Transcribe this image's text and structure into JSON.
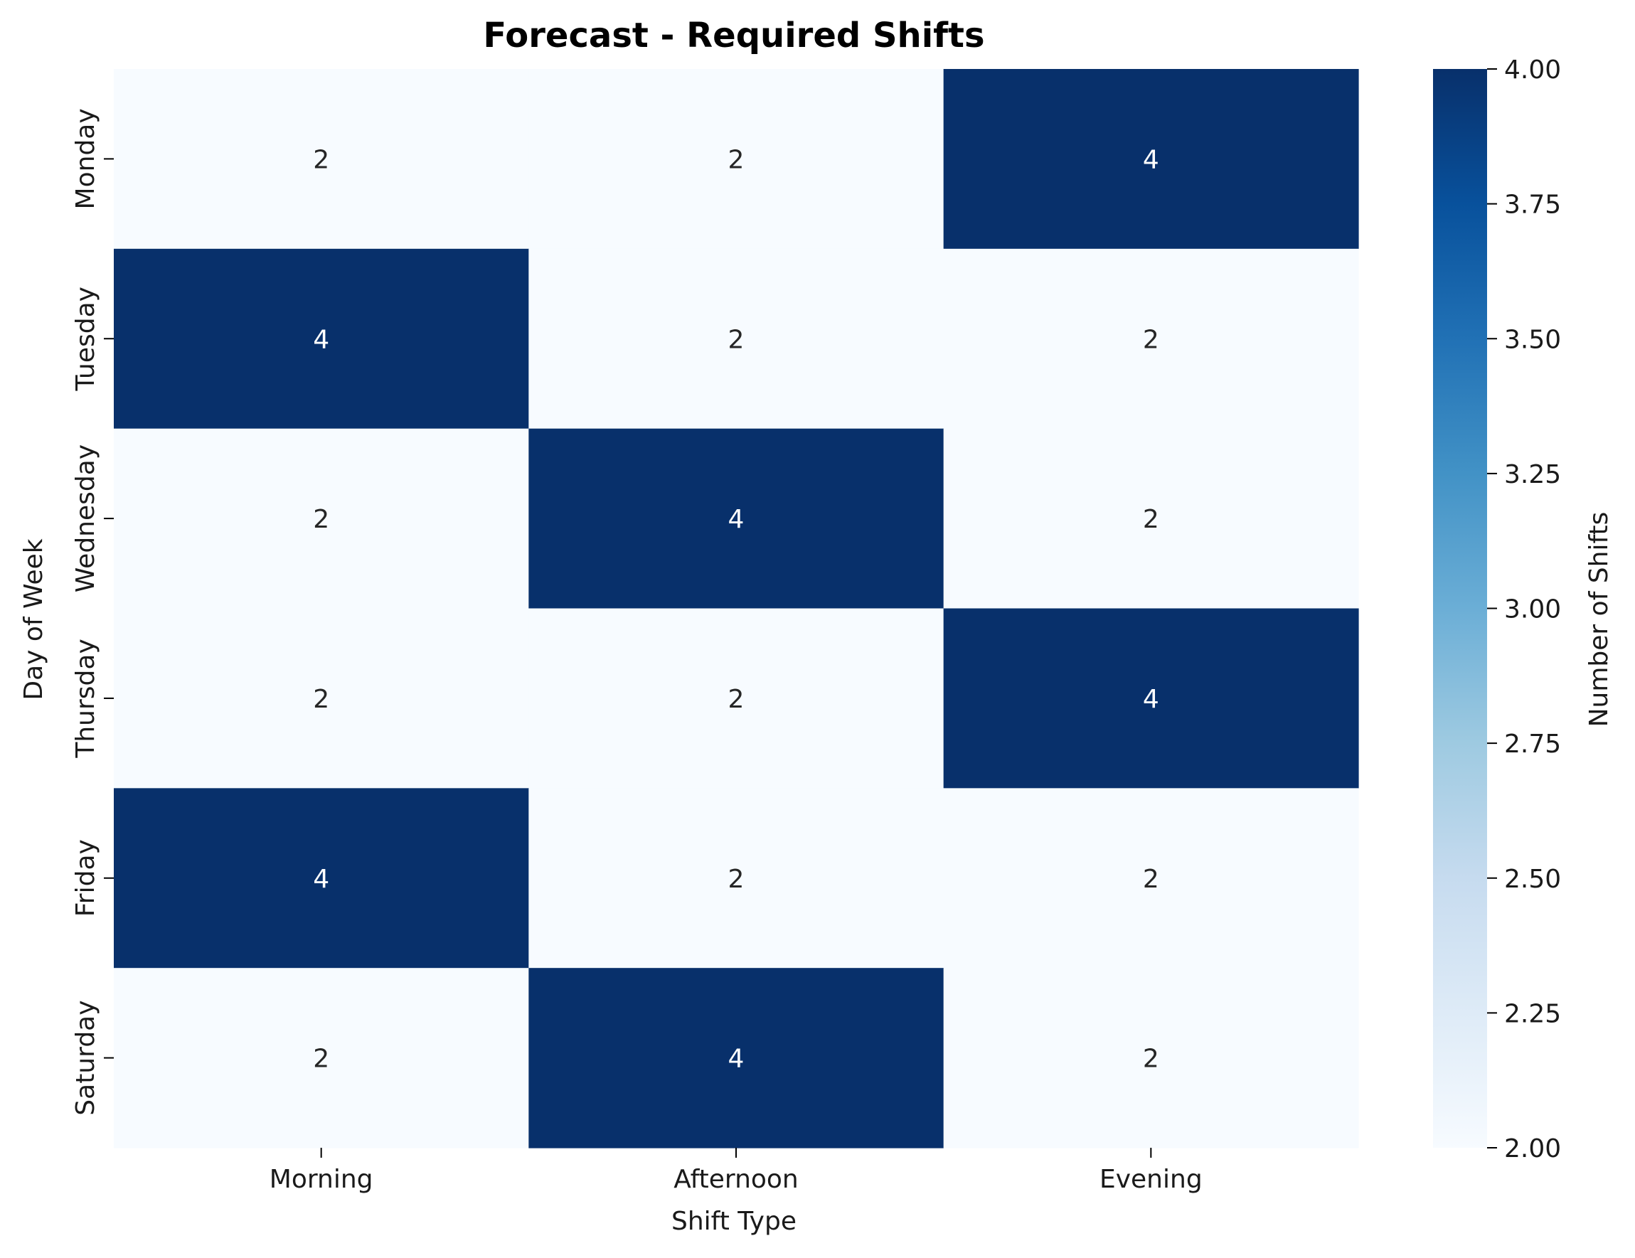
{
  "chart_data": {
    "type": "heatmap",
    "title": "Forecast - Required Shifts",
    "xlabel": "Shift Type",
    "ylabel": "Day of Week",
    "x_categories": [
      "Morning",
      "Afternoon",
      "Evening"
    ],
    "y_categories": [
      "Monday",
      "Tuesday",
      "Wednesday",
      "Thursday",
      "Friday",
      "Saturday"
    ],
    "values": [
      [
        2,
        2,
        4
      ],
      [
        4,
        2,
        2
      ],
      [
        2,
        4,
        2
      ],
      [
        2,
        2,
        4
      ],
      [
        4,
        2,
        2
      ],
      [
        2,
        4,
        2
      ]
    ],
    "cell_labels": [
      [
        "2",
        "2",
        "4"
      ],
      [
        "4",
        "2",
        "2"
      ],
      [
        "2",
        "4",
        "2"
      ],
      [
        "2",
        "2",
        "4"
      ],
      [
        "4",
        "2",
        "2"
      ],
      [
        "2",
        "4",
        "2"
      ]
    ],
    "colormap": "Blues",
    "color_low": "#f7fbff",
    "color_high": "#08306b",
    "annotation_color_light": "#ffffff",
    "annotation_color_dark": "#262626",
    "colorbar": {
      "label": "Number of Shifts",
      "range": [
        2.0,
        4.0
      ],
      "ticks": [
        2.0,
        2.25,
        2.5,
        2.75,
        3.0,
        3.25,
        3.5,
        3.75,
        4.0
      ],
      "tick_labels": [
        "2.00",
        "2.25",
        "2.50",
        "2.75",
        "3.00",
        "3.25",
        "3.50",
        "3.75",
        "4.00"
      ]
    }
  }
}
